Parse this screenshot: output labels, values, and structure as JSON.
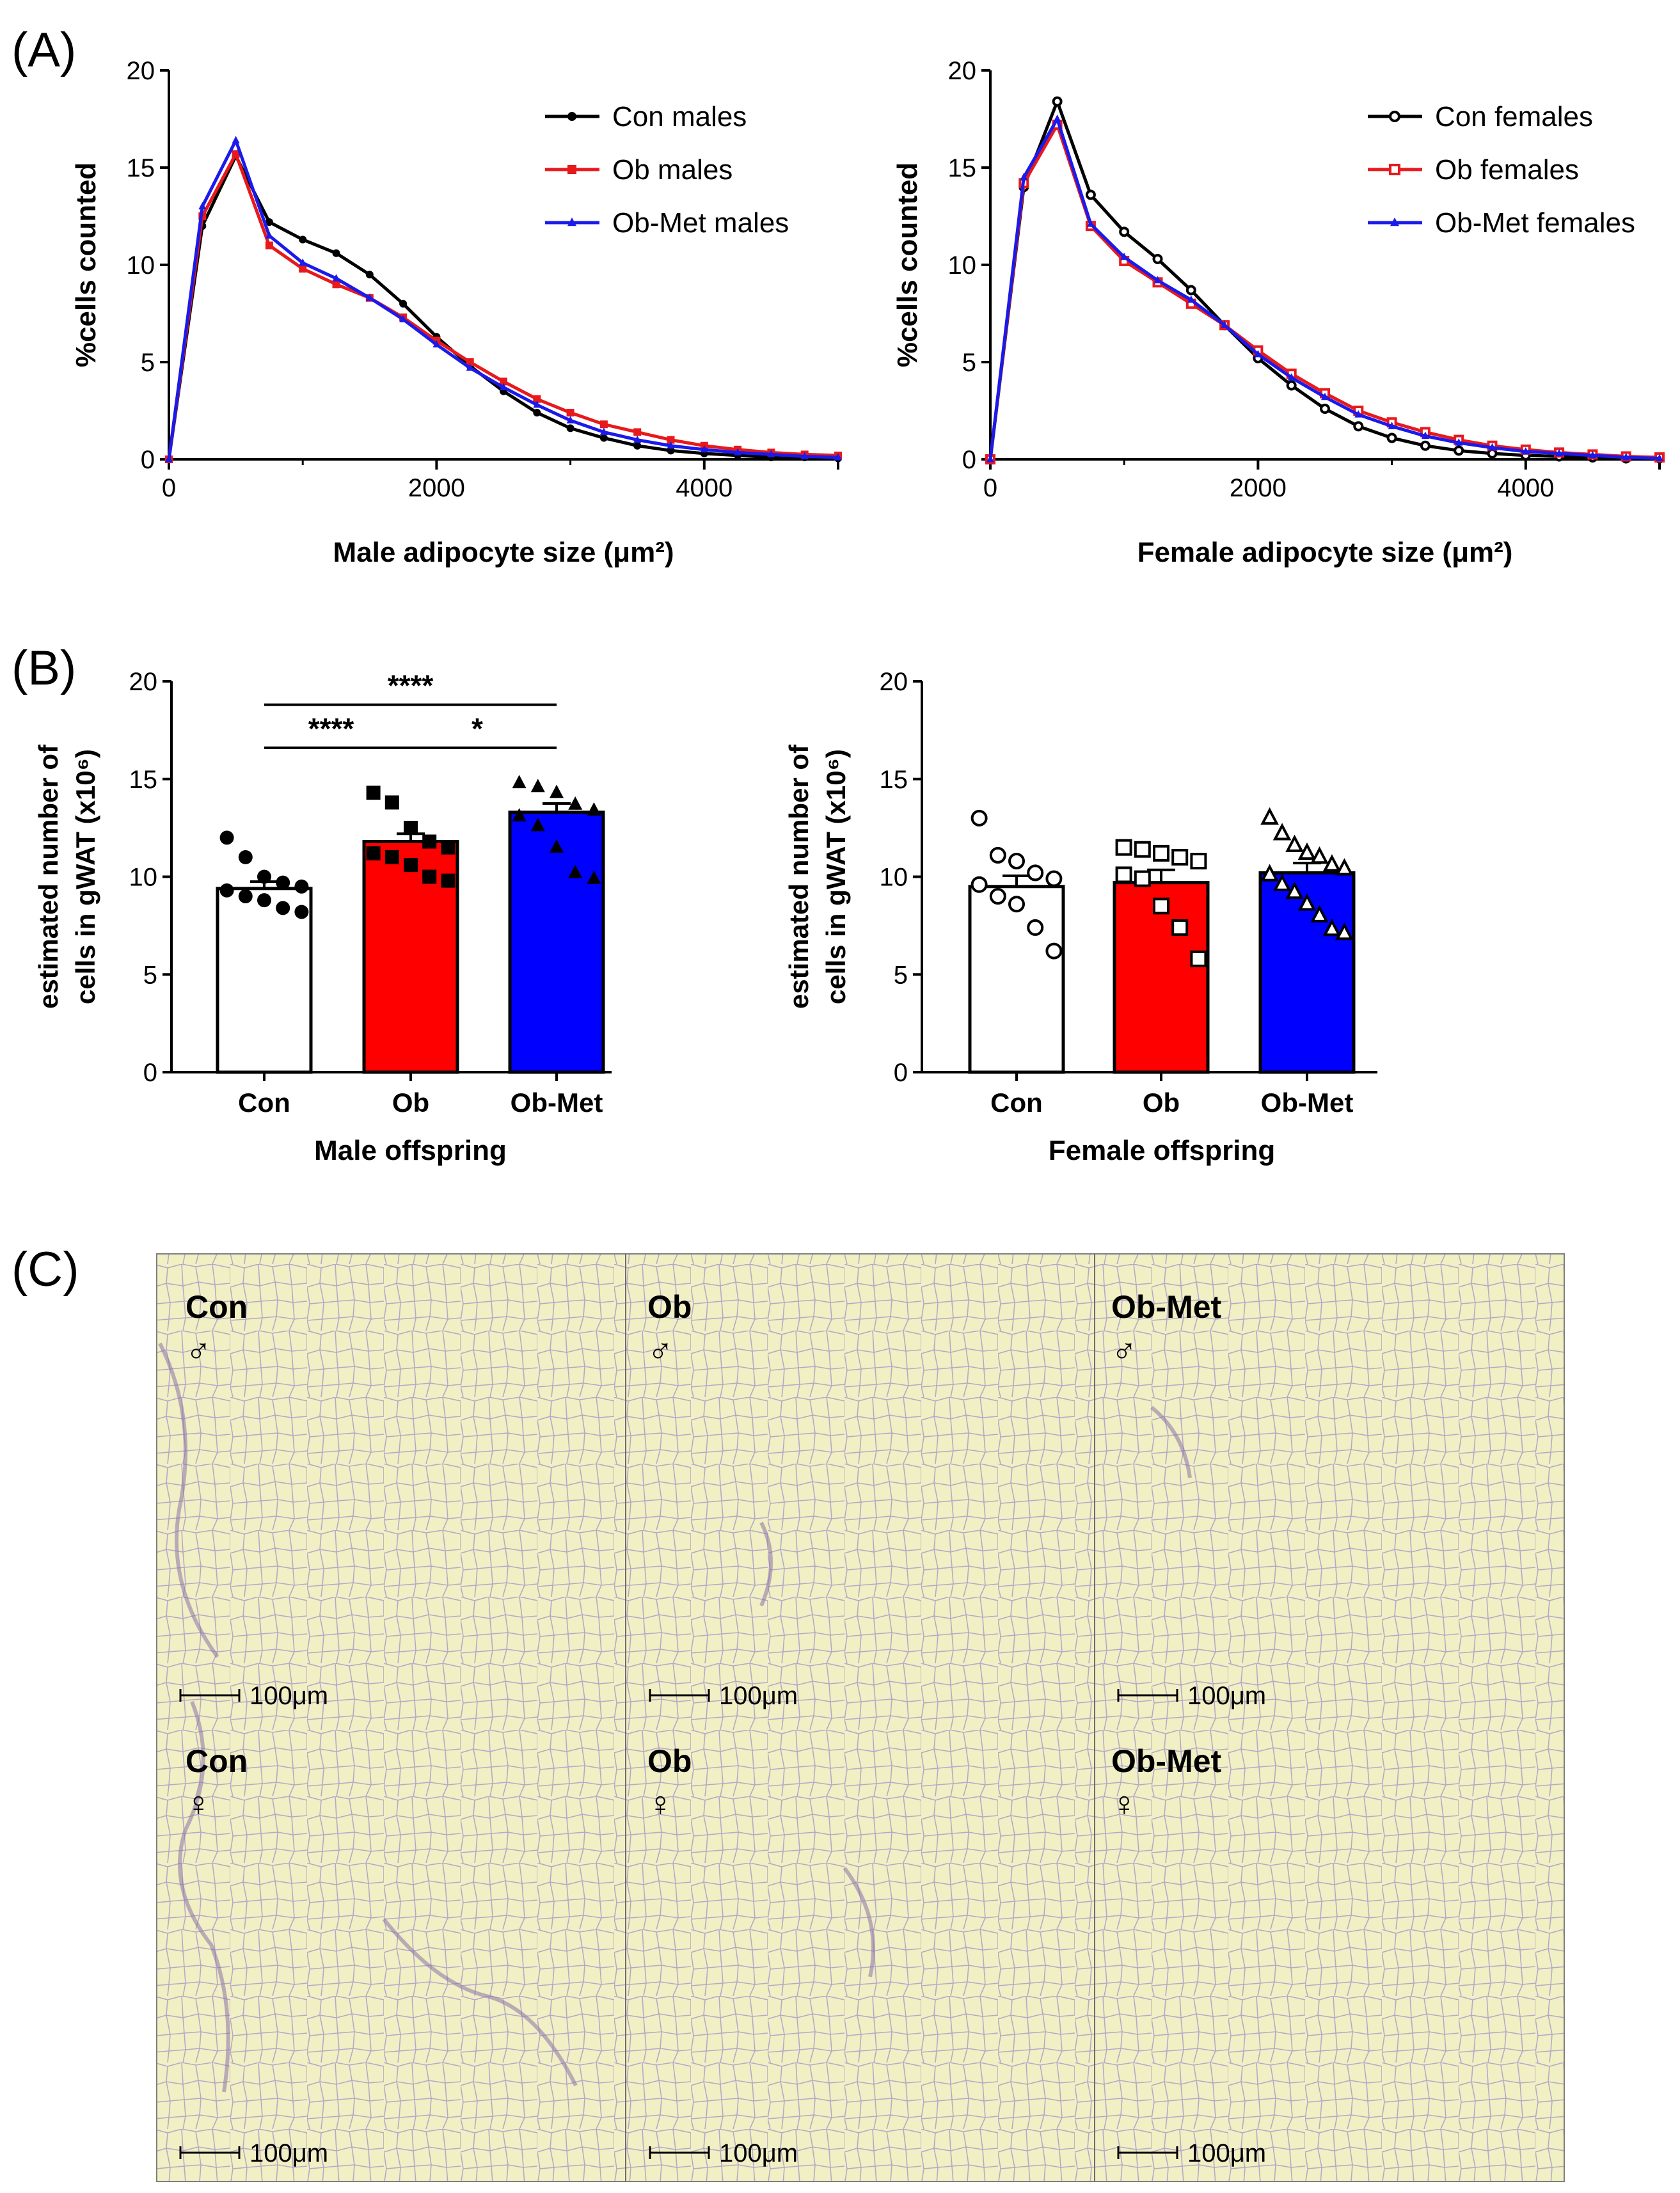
{
  "panels": {
    "a": {
      "letter": "(A)"
    },
    "b": {
      "letter": "(B)"
    },
    "c": {
      "letter": "(C)"
    }
  },
  "chart_data": [
    {
      "id": "male_size",
      "type": "line",
      "xlabel": "Male adipocyte size (μm²)",
      "ylabel": "%cells counted",
      "xlim": [
        0,
        5000
      ],
      "ylim": [
        0,
        20
      ],
      "xticks": [
        0,
        2000,
        4000
      ],
      "yticks": [
        0,
        5,
        10,
        15,
        20
      ],
      "x": [
        0,
        250,
        500,
        750,
        1000,
        1250,
        1500,
        1750,
        2000,
        2250,
        2500,
        2750,
        3000,
        3250,
        3500,
        3750,
        4000,
        4250,
        4500,
        4750,
        5000
      ],
      "series": [
        {
          "name": "Con males",
          "color": "#000000",
          "marker": "dot",
          "values": [
            0,
            12.0,
            15.6,
            12.2,
            11.3,
            10.6,
            9.5,
            8.0,
            6.3,
            4.8,
            3.5,
            2.4,
            1.6,
            1.1,
            0.7,
            0.45,
            0.3,
            0.2,
            0.1,
            0.1,
            0.05
          ]
        },
        {
          "name": "Ob males",
          "color": "#e8191c",
          "marker": "square",
          "values": [
            0,
            12.5,
            15.7,
            11.0,
            9.8,
            9.0,
            8.3,
            7.3,
            6.1,
            5.0,
            4.0,
            3.1,
            2.4,
            1.8,
            1.4,
            1.0,
            0.7,
            0.5,
            0.35,
            0.25,
            0.2
          ]
        },
        {
          "name": "Ob-Met males",
          "color": "#1a1aeb",
          "marker": "triangle",
          "values": [
            0,
            13.0,
            16.4,
            11.5,
            10.1,
            9.3,
            8.3,
            7.2,
            5.9,
            4.7,
            3.7,
            2.8,
            2.0,
            1.4,
            1.0,
            0.7,
            0.5,
            0.35,
            0.25,
            0.15,
            0.1
          ]
        }
      ]
    },
    {
      "id": "female_size",
      "type": "line",
      "xlabel": "Female adipocyte size (μm²)",
      "ylabel": "%cells counted",
      "xlim": [
        0,
        5000
      ],
      "ylim": [
        0,
        20
      ],
      "xticks": [
        0,
        2000,
        4000
      ],
      "yticks": [
        0,
        5,
        10,
        15,
        20
      ],
      "x": [
        0,
        250,
        500,
        750,
        1000,
        1250,
        1500,
        1750,
        2000,
        2250,
        2500,
        2750,
        3000,
        3250,
        3500,
        3750,
        4000,
        4250,
        4500,
        4750,
        5000
      ],
      "series": [
        {
          "name": "Con females",
          "color": "#000000",
          "marker": "circle-open",
          "values": [
            0,
            14.0,
            18.4,
            13.6,
            11.7,
            10.3,
            8.7,
            6.9,
            5.2,
            3.8,
            2.6,
            1.7,
            1.1,
            0.7,
            0.45,
            0.3,
            0.2,
            0.15,
            0.1,
            0.05,
            0.05
          ]
        },
        {
          "name": "Ob females",
          "color": "#e8191c",
          "marker": "square-open",
          "values": [
            0,
            14.2,
            17.2,
            12.0,
            10.2,
            9.1,
            8.0,
            6.9,
            5.6,
            4.4,
            3.4,
            2.5,
            1.9,
            1.4,
            1.0,
            0.7,
            0.5,
            0.35,
            0.25,
            0.15,
            0.1
          ]
        },
        {
          "name": "Ob-Met females",
          "color": "#1a1aeb",
          "marker": "triangle",
          "values": [
            0,
            14.5,
            17.5,
            12.1,
            10.4,
            9.2,
            8.2,
            6.9,
            5.4,
            4.2,
            3.2,
            2.3,
            1.7,
            1.2,
            0.85,
            0.6,
            0.4,
            0.3,
            0.2,
            0.1,
            0.05
          ]
        }
      ]
    },
    {
      "id": "male_cells",
      "type": "bar",
      "xlabel": "Male offspring",
      "ylabel_line1": "estimated number of",
      "ylabel_line2": "cells in gWAT (x10⁶)",
      "ylim": [
        0,
        20
      ],
      "yticks": [
        0,
        5,
        10,
        15,
        20
      ],
      "categories": [
        "Con",
        "Ob",
        "Ob-Met"
      ],
      "values": [
        9.4,
        11.8,
        13.3
      ],
      "errors": [
        0.35,
        0.4,
        0.45
      ],
      "colors": [
        "#ffffff",
        "#ff0000",
        "#0000ff"
      ],
      "markers": [
        "dot",
        "square",
        "triangle"
      ],
      "points": [
        [
          12.0,
          11.0,
          10.0,
          9.7,
          9.5,
          9.3,
          9.0,
          8.8,
          8.4,
          8.2
        ],
        [
          14.3,
          13.8,
          12.5,
          11.8,
          11.5,
          11.2,
          11.0,
          10.6,
          10.0,
          9.8
        ],
        [
          14.8,
          14.6,
          14.3,
          13.7,
          13.4,
          13.1,
          12.6,
          11.5,
          10.2,
          9.9
        ]
      ],
      "significance": [
        {
          "from": 0,
          "to": 2,
          "label": "****"
        },
        {
          "from": 0,
          "to": 1,
          "label": "****"
        },
        {
          "from": 1,
          "to": 2,
          "label": "*"
        }
      ]
    },
    {
      "id": "female_cells",
      "type": "bar",
      "xlabel": "Female offspring",
      "ylabel_line1": "estimated number of",
      "ylabel_line2": "cells in gWAT (x10⁶)",
      "ylim": [
        0,
        20
      ],
      "yticks": [
        0,
        5,
        10,
        15,
        20
      ],
      "categories": [
        "Con",
        "Ob",
        "Ob-Met"
      ],
      "values": [
        9.5,
        9.7,
        10.2
      ],
      "errors": [
        0.55,
        0.65,
        0.5
      ],
      "colors": [
        "#ffffff",
        "#ff0000",
        "#0000ff"
      ],
      "markers": [
        "circle-open",
        "square-open",
        "triangle-open"
      ],
      "points": [
        [
          13.0,
          11.1,
          10.8,
          10.2,
          9.9,
          9.6,
          9.0,
          8.6,
          7.4,
          6.2
        ],
        [
          11.5,
          11.4,
          11.2,
          11.0,
          10.8,
          10.1,
          9.9,
          8.5,
          7.4,
          5.8
        ],
        [
          13.0,
          12.2,
          11.6,
          11.2,
          11.0,
          10.6,
          10.4,
          10.1,
          9.6,
          9.2,
          8.6,
          8.0,
          7.3,
          7.1
        ]
      ],
      "significance": []
    }
  ],
  "micrographs": [
    {
      "group": "Con",
      "sex": "♂",
      "scale": "100μm"
    },
    {
      "group": "Ob",
      "sex": "♂",
      "scale": "100μm"
    },
    {
      "group": "Ob-Met",
      "sex": "♂",
      "scale": "100μm"
    },
    {
      "group": "Con",
      "sex": "♀",
      "scale": "100μm"
    },
    {
      "group": "Ob",
      "sex": "♀",
      "scale": "100μm"
    },
    {
      "group": "Ob-Met",
      "sex": "♀",
      "scale": "100μm"
    }
  ],
  "colors": {
    "tissue_bg": "#f1efc4",
    "tissue_line": "#b5a9c7",
    "tissue_stain": "#8a72a8"
  }
}
